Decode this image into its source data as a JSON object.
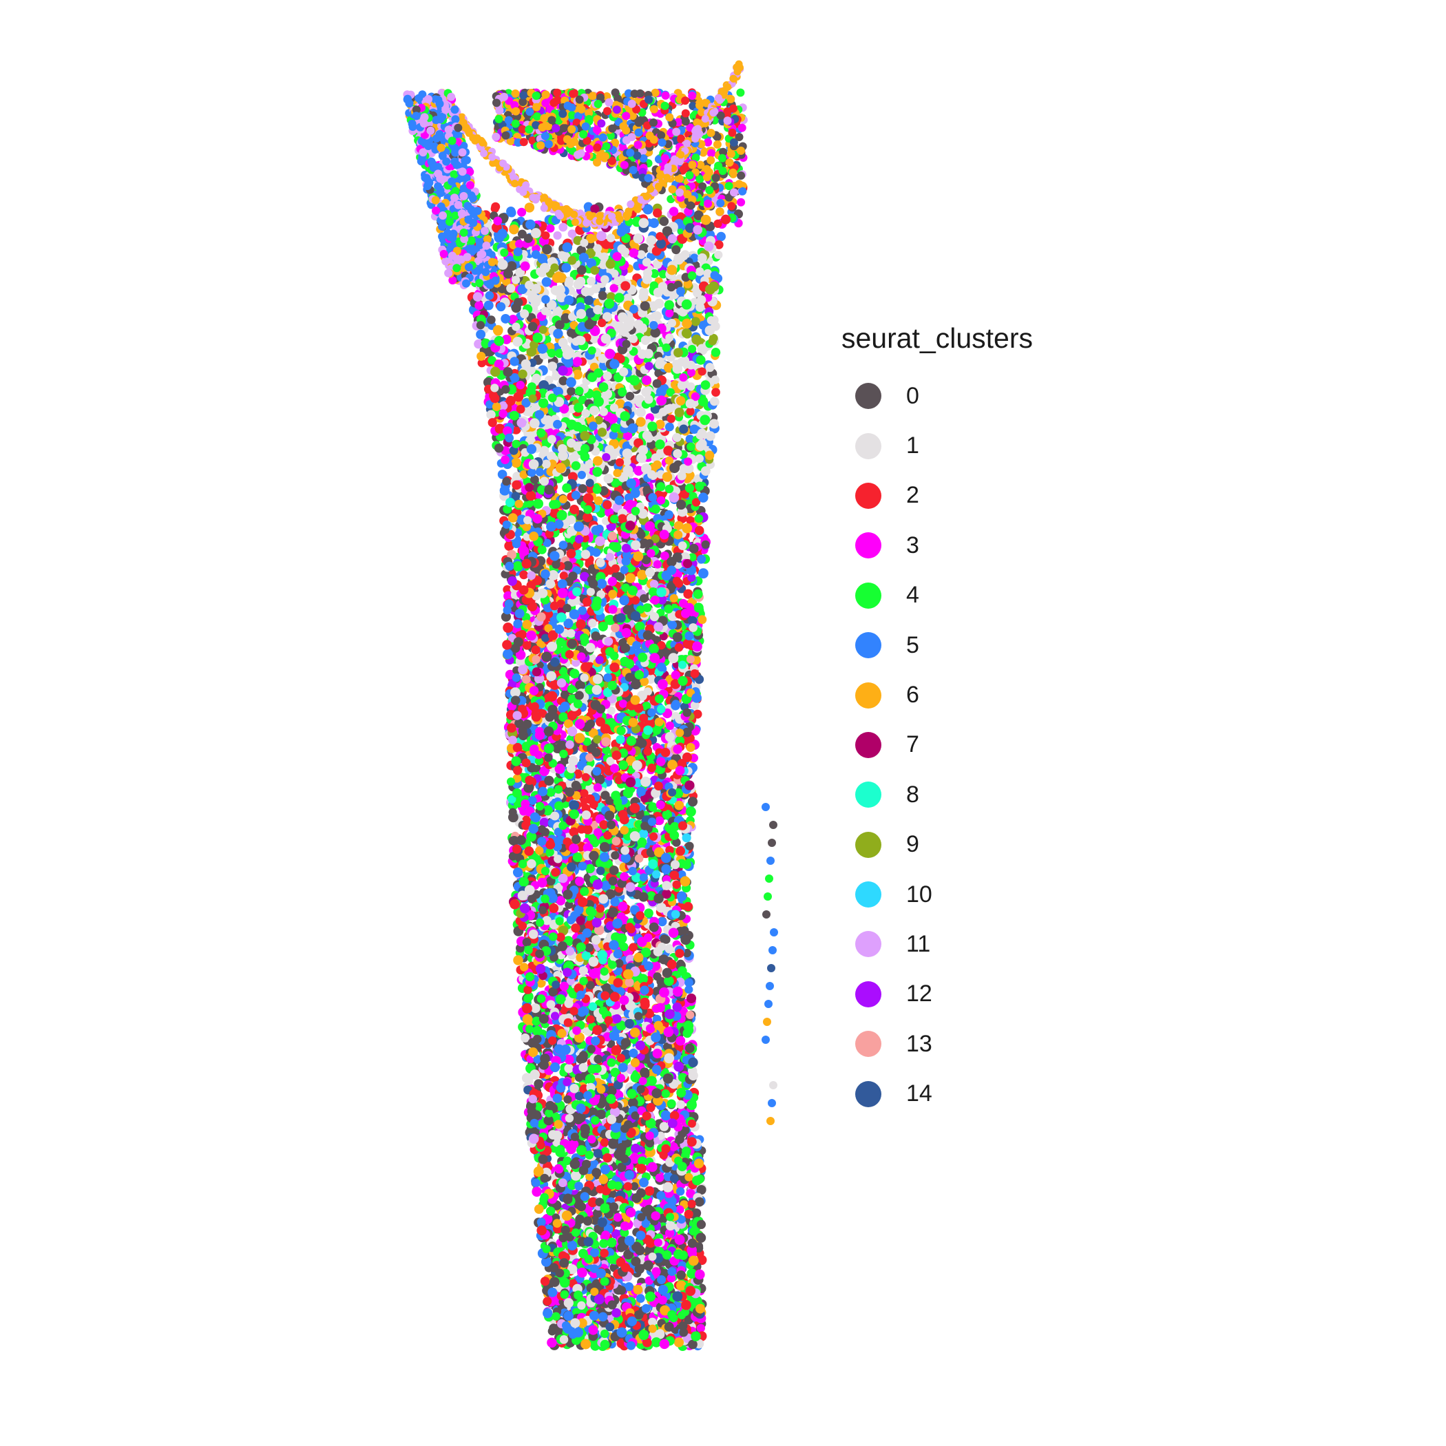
{
  "chart_data": {
    "type": "scatter",
    "title": "",
    "xlabel": "",
    "ylabel": "",
    "grid": false,
    "axes": false,
    "legend_position": "right",
    "legend": {
      "title": "seurat_clusters",
      "entries": [
        {
          "label": "0",
          "color": "#5A5156"
        },
        {
          "label": "1",
          "color": "#E4E1E3"
        },
        {
          "label": "2",
          "color": "#F6222E"
        },
        {
          "label": "3",
          "color": "#FE00FA"
        },
        {
          "label": "4",
          "color": "#16FF32"
        },
        {
          "label": "5",
          "color": "#3283FE"
        },
        {
          "label": "6",
          "color": "#FEAF16"
        },
        {
          "label": "7",
          "color": "#B00068"
        },
        {
          "label": "8",
          "color": "#1CFFCE"
        },
        {
          "label": "9",
          "color": "#90AD1C"
        },
        {
          "label": "10",
          "color": "#2ED9FF"
        },
        {
          "label": "11",
          "color": "#DEA0FD"
        },
        {
          "label": "12",
          "color": "#AA0DFE"
        },
        {
          "label": "13",
          "color": "#F8A19F"
        },
        {
          "label": "14",
          "color": "#325A9B"
        }
      ]
    },
    "outlier_points": [
      {
        "cluster": "5"
      },
      {
        "cluster": "0"
      },
      {
        "cluster": "0"
      },
      {
        "cluster": "5"
      },
      {
        "cluster": "4"
      },
      {
        "cluster": "4"
      },
      {
        "cluster": "0"
      },
      {
        "cluster": "5"
      },
      {
        "cluster": "5"
      },
      {
        "cluster": "14"
      },
      {
        "cluster": "5"
      },
      {
        "cluster": "5"
      },
      {
        "cluster": "6"
      },
      {
        "cluster": "5"
      },
      {
        "cluster": "1"
      },
      {
        "cluster": "5"
      },
      {
        "cluster": "6"
      }
    ]
  }
}
